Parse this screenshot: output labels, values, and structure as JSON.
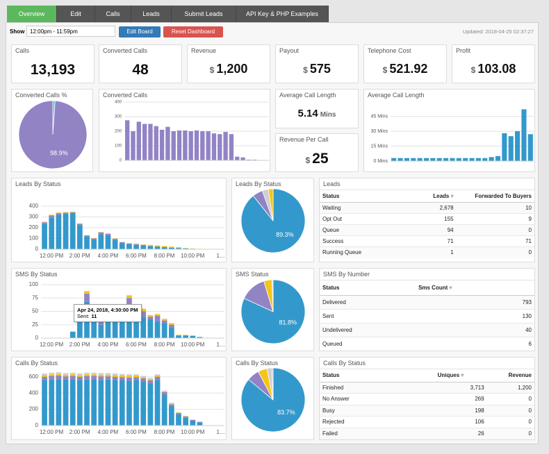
{
  "tabs": [
    "Overview",
    "Edit",
    "Calls",
    "Leads",
    "Submit Leads",
    "API Key & PHP Examples"
  ],
  "toolbar": {
    "show_label": "Show",
    "time_range": "12:00pm - 11:59pm",
    "edit_button": "Edit Board",
    "reset_button": "Reset Dashboard",
    "updated": "Updated: 2018-04-25 02:37:27"
  },
  "stats": [
    {
      "title": "Calls",
      "value": "13,193"
    },
    {
      "title": "Converted Calls",
      "value": "48"
    },
    {
      "title": "Revenue",
      "prefix": "$",
      "value": "1,200"
    },
    {
      "title": "Payout",
      "prefix": "$",
      "value": "575"
    },
    {
      "title": "Telephone Cost",
      "prefix": "$",
      "value": "521.92"
    },
    {
      "title": "Profit",
      "prefix": "$",
      "value": "103.08"
    }
  ],
  "avg_call_length": {
    "title": "Average Call Length",
    "value": "5.14",
    "unit": "Mins"
  },
  "revenue_per_call": {
    "title": "Revenue Per Call",
    "prefix": "$",
    "value": "25"
  },
  "charts": {
    "converted_pct": {
      "type": "pie",
      "title": "Converted Calls %",
      "values": [
        1.1,
        98.9
      ],
      "colors": [
        "#5bc0de",
        "#9283c5"
      ],
      "value_labels": [
        null,
        "98.9%"
      ]
    },
    "converted_calls": {
      "type": "bar",
      "title": "Converted Calls",
      "ylim": [
        0,
        400
      ],
      "yticks": [
        0,
        100,
        200,
        300,
        400
      ],
      "grid": true,
      "series": [
        {
          "color": "#9283c5",
          "values": [
            275,
            200,
            265,
            250,
            250,
            235,
            210,
            230,
            200,
            205,
            205,
            200,
            205,
            200,
            200,
            185,
            180,
            195,
            180,
            25,
            20,
            5,
            5,
            0,
            0
          ]
        }
      ]
    },
    "avg_length": {
      "type": "bar",
      "title": "Average Call Length",
      "ylim": [
        0,
        60
      ],
      "yticks": [
        {
          "value": 0,
          "label": "0 Mins"
        },
        {
          "value": 15,
          "label": "15 Mins"
        },
        {
          "value": 30,
          "label": "30 Mins"
        },
        {
          "value": 45,
          "label": "45 Mins"
        }
      ],
      "grid": true,
      "series": [
        {
          "color": "#3399cc",
          "values": [
            3,
            3,
            3,
            3,
            3,
            3,
            3,
            3,
            3,
            3,
            3,
            3,
            3,
            3,
            3,
            4,
            5,
            28,
            25,
            30,
            52,
            27
          ]
        }
      ]
    },
    "leads_bar": {
      "type": "bar",
      "title": "Leads By Status",
      "ylim": [
        0,
        400
      ],
      "yticks": [
        0,
        100,
        200,
        300,
        400
      ],
      "grid": true,
      "categories": [
        "12:00 PM",
        null,
        null,
        null,
        "2:00 PM",
        null,
        null,
        null,
        "4:00 PM",
        null,
        null,
        null,
        "6:00 PM",
        null,
        null,
        null,
        "8:00 PM",
        null,
        null,
        null,
        "10:00 PM",
        null,
        null,
        null,
        "1…",
        null
      ],
      "series": [
        {
          "color": "#3399cc",
          "values": [
            235,
            295,
            320,
            330,
            335,
            225,
            120,
            90,
            140,
            130,
            85,
            55,
            45,
            40,
            35,
            30,
            25,
            20,
            15,
            12,
            8,
            5,
            3,
            2,
            0,
            0
          ]
        },
        {
          "color": "#9283c5",
          "values": [
            15,
            20,
            15,
            10,
            8,
            10,
            8,
            10,
            15,
            12,
            12,
            10,
            8,
            8,
            6,
            0,
            0,
            0,
            0,
            0,
            0,
            0,
            0,
            0,
            0,
            0
          ]
        },
        {
          "color": "#f5c518",
          "values": [
            5,
            5,
            5,
            5,
            5,
            5,
            3,
            3,
            5,
            5,
            3,
            3,
            3,
            3,
            3,
            10,
            10,
            10,
            8,
            6,
            3,
            2,
            1,
            0,
            0,
            0
          ]
        }
      ]
    },
    "leads_pie": {
      "type": "pie",
      "title": "Leads By Status",
      "values": [
        89.3,
        5.2,
        3.1,
        2.4
      ],
      "colors": [
        "#3399cc",
        "#9283c5",
        "#cfcfcf",
        "#f5c518"
      ],
      "value_labels": [
        "89.3%",
        null,
        null,
        null
      ]
    },
    "sms_bar": {
      "type": "bar",
      "title": "SMS By Status",
      "ylim": [
        0,
        100
      ],
      "yticks": [
        0,
        25,
        50,
        75,
        100
      ],
      "grid": true,
      "categories": [
        "12:00 PM",
        null,
        null,
        null,
        "2:00 PM",
        null,
        null,
        null,
        "4:00 PM",
        null,
        null,
        null,
        "6:00 PM",
        null,
        null,
        null,
        "8:00 PM",
        null,
        null,
        null,
        "10:00 PM",
        null,
        null,
        null,
        "1…",
        null
      ],
      "series": [
        {
          "color": "#3399cc",
          "values": [
            0,
            0,
            0,
            0,
            12,
            30,
            68,
            30,
            25,
            55,
            40,
            52,
            55,
            32,
            40,
            35,
            32,
            28,
            20,
            5,
            5,
            4,
            2,
            0,
            0,
            0
          ]
        },
        {
          "color": "#9283c5",
          "values": [
            0,
            0,
            0,
            0,
            0,
            5,
            15,
            5,
            5,
            5,
            5,
            5,
            20,
            5,
            10,
            5,
            10,
            5,
            5,
            0,
            0,
            0,
            0,
            0,
            0,
            0
          ]
        },
        {
          "color": "#f5c518",
          "values": [
            0,
            0,
            0,
            0,
            0,
            2,
            5,
            2,
            2,
            3,
            3,
            3,
            5,
            3,
            5,
            3,
            3,
            3,
            3,
            1,
            1,
            1,
            0,
            0,
            0,
            0
          ]
        }
      ],
      "tooltip": {
        "title": "Apr 24, 2018, 4:30:00 PM",
        "label": "Sent:",
        "value": 11
      }
    },
    "sms_pie": {
      "type": "pie",
      "title": "SMS Status",
      "values": [
        81.8,
        13.4,
        4.1,
        0.6
      ],
      "colors": [
        "#3399cc",
        "#9283c5",
        "#f5c518",
        "#cfcfcf"
      ],
      "value_labels": [
        "81.8%",
        null,
        null,
        null
      ]
    },
    "calls_bar": {
      "type": "bar",
      "title": "Calls By Status",
      "ylim": [
        0,
        700
      ],
      "yticks": [
        0,
        200,
        400,
        600
      ],
      "grid": true,
      "categories": [
        "12:00 PM",
        null,
        null,
        null,
        "2:00 PM",
        null,
        null,
        null,
        "4:00 PM",
        null,
        null,
        null,
        "6:00 PM",
        null,
        null,
        null,
        "8:00 PM",
        null,
        null,
        null,
        "10:00 PM",
        null,
        null,
        null,
        "1…",
        null
      ],
      "series": [
        {
          "color": "#3399cc",
          "values": [
            560,
            565,
            570,
            565,
            570,
            560,
            565,
            570,
            560,
            565,
            560,
            555,
            550,
            560,
            545,
            520,
            560,
            380,
            240,
            140,
            100,
            60,
            40,
            0,
            0,
            0
          ]
        },
        {
          "color": "#9283c5",
          "values": [
            40,
            45,
            45,
            40,
            40,
            40,
            45,
            40,
            45,
            40,
            40,
            40,
            40,
            35,
            35,
            35,
            40,
            30,
            20,
            15,
            10,
            8,
            5,
            0,
            0,
            0
          ]
        },
        {
          "color": "#f5c518",
          "values": [
            20,
            20,
            20,
            20,
            20,
            20,
            20,
            20,
            20,
            20,
            20,
            20,
            20,
            20,
            15,
            15,
            15,
            10,
            10,
            5,
            5,
            3,
            2,
            0,
            0,
            0
          ]
        },
        {
          "color": "#cfcfcf",
          "values": [
            20,
            20,
            20,
            20,
            20,
            20,
            20,
            20,
            20,
            20,
            20,
            20,
            20,
            15,
            15,
            15,
            15,
            10,
            10,
            5,
            5,
            3,
            2,
            0,
            0,
            0
          ]
        }
      ]
    },
    "calls_pie": {
      "type": "pie",
      "title": "Calls By Status",
      "values": [
        83.7,
        6.1,
        4.5,
        2.4,
        0.6
      ],
      "colors": [
        "#3399cc",
        "#9283c5",
        "#f5c518",
        "#cfcfcf",
        "#b3a9de"
      ],
      "value_labels": [
        "83.7%",
        null,
        null,
        null,
        null
      ]
    }
  },
  "tables": {
    "leads": {
      "title": "Leads",
      "headers": [
        "Status",
        "Leads",
        "Forwarded To Buyers"
      ],
      "rows": [
        [
          "Waiting",
          "2,678",
          "10"
        ],
        [
          "Opt Out",
          "155",
          "9"
        ],
        [
          "Queue",
          "94",
          "0"
        ],
        [
          "Success",
          "71",
          "71"
        ],
        [
          "Running Queue",
          "1",
          "0"
        ]
      ]
    },
    "sms": {
      "title": "SMS By Number",
      "headers": [
        "Status",
        "Sms Count"
      ],
      "rows": [
        [
          "Delivered",
          "793"
        ],
        [
          "Sent",
          "130"
        ],
        [
          "Undelivered",
          "40"
        ],
        [
          "Queued",
          "6"
        ]
      ]
    },
    "calls": {
      "title": "Calls By Status",
      "headers": [
        "Status",
        "Uniques",
        "Revenue"
      ],
      "rows": [
        [
          "Finished",
          "3,713",
          "1,200"
        ],
        [
          "No Answer",
          "269",
          "0"
        ],
        [
          "Busy",
          "198",
          "0"
        ],
        [
          "Rejected",
          "106",
          "0"
        ],
        [
          "Failed",
          "26",
          "0"
        ]
      ]
    }
  }
}
